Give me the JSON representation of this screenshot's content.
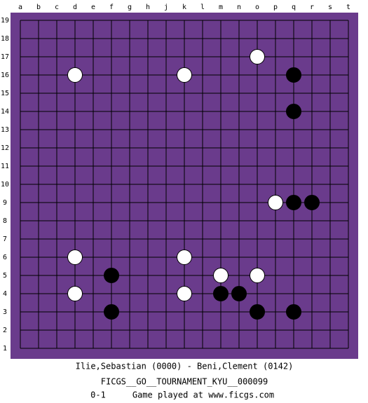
{
  "board": {
    "columns": [
      "a",
      "b",
      "c",
      "d",
      "e",
      "f",
      "g",
      "h",
      "j",
      "k",
      "l",
      "m",
      "n",
      "o",
      "p",
      "q",
      "r",
      "s",
      "t"
    ],
    "rows": [
      19,
      18,
      17,
      16,
      15,
      14,
      13,
      12,
      11,
      10,
      9,
      8,
      7,
      6,
      5,
      4,
      3,
      2,
      1
    ],
    "stones": [
      {
        "color": "white",
        "col": "d",
        "row": 16
      },
      {
        "color": "white",
        "col": "k",
        "row": 16
      },
      {
        "color": "white",
        "col": "o",
        "row": 17
      },
      {
        "color": "black",
        "col": "q",
        "row": 16
      },
      {
        "color": "black",
        "col": "q",
        "row": 14
      },
      {
        "color": "white",
        "col": "p",
        "row": 9
      },
      {
        "color": "black",
        "col": "q",
        "row": 9
      },
      {
        "color": "black",
        "col": "r",
        "row": 9
      },
      {
        "color": "white",
        "col": "d",
        "row": 6
      },
      {
        "color": "white",
        "col": "k",
        "row": 6
      },
      {
        "color": "black",
        "col": "f",
        "row": 5
      },
      {
        "color": "white",
        "col": "m",
        "row": 5
      },
      {
        "color": "white",
        "col": "o",
        "row": 5
      },
      {
        "color": "white",
        "col": "d",
        "row": 4
      },
      {
        "color": "white",
        "col": "k",
        "row": 4
      },
      {
        "color": "black",
        "col": "m",
        "row": 4
      },
      {
        "color": "black",
        "col": "n",
        "row": 4
      },
      {
        "color": "black",
        "col": "f",
        "row": 3
      },
      {
        "color": "black",
        "col": "o",
        "row": 3
      },
      {
        "color": "black",
        "col": "q",
        "row": 3
      }
    ]
  },
  "footer": {
    "players": "Ilie,Sebastian (0000) - Beni,Clement (0142)",
    "event": "FICGS__GO__TOURNAMENT_KYU__000099",
    "result": "0-1",
    "site": "Game played at www.ficgs.com"
  }
}
